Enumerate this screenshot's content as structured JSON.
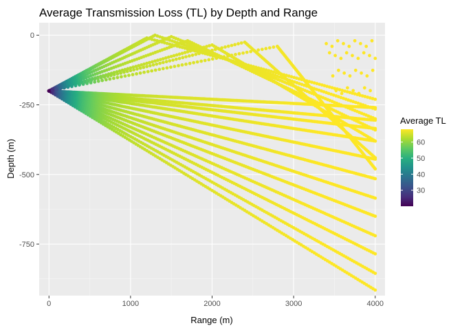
{
  "chart_data": {
    "type": "scatter",
    "title": "Average Transmission Loss (TL) by Depth and Range",
    "xlabel": "Range (m)",
    "ylabel": "Depth (m)",
    "xlim": [
      -120,
      4120
    ],
    "ylim": [
      -935,
      45
    ],
    "x_ticks": [
      0,
      1000,
      2000,
      3000,
      4000
    ],
    "y_ticks": [
      0,
      -250,
      -500,
      -750
    ],
    "x_tick_labels": [
      "0",
      "1000",
      "2000",
      "3000",
      "4000"
    ],
    "y_tick_labels": [
      "0",
      "-250",
      "-500",
      "-750"
    ],
    "source": {
      "range": 0,
      "depth": -200
    },
    "ray_families": {
      "downward_endpoint_depths_at_4000": [
        -915,
        -855,
        -785,
        -720,
        -650,
        -585,
        -515,
        -445,
        -380,
        -335,
        -305,
        -260
      ],
      "upward_apex": [
        {
          "range": 1200,
          "depth": -10,
          "end_depth_at_4000": -230
        },
        {
          "range": 1300,
          "depth": 0,
          "end_depth_at_4000": -265
        },
        {
          "range": 1500,
          "depth": -5,
          "end_depth_at_4000": -300
        },
        {
          "range": 1700,
          "depth": -20,
          "end_depth_at_4000": -340
        },
        {
          "range": 2000,
          "depth": -35,
          "end_depth_at_4000": -380
        },
        {
          "range": 2400,
          "depth": -25,
          "end_depth_at_4000": -440
        },
        {
          "range": 2800,
          "depth": -40,
          "end_depth_at_4000": -480
        }
      ],
      "surface_scatter_depths": [
        -20,
        -60,
        -120,
        -180
      ]
    },
    "color_scale": {
      "name": "Average TL",
      "palette": "viridis",
      "range": [
        20,
        68
      ],
      "ticks": [
        30,
        40,
        50,
        60
      ],
      "tick_labels": [
        "30",
        "40",
        "50",
        "60"
      ]
    },
    "legend_position": "right",
    "grid": true
  }
}
